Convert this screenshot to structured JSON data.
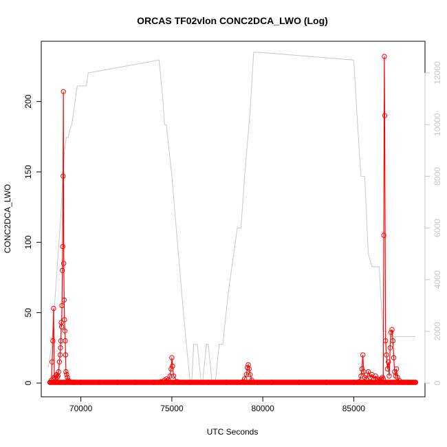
{
  "chart_data": {
    "type": "line",
    "title": "ORCAS TF02vlon CONC2DCA_LWO (Log)",
    "xlabel": "UTC Seconds",
    "ylabel": "CONC2DCA_LWO",
    "xlim": [
      68200,
      88500
    ],
    "ylim": [
      0,
      235
    ],
    "y2lim": [
      0,
      12800
    ],
    "x_ticks": [
      "70000",
      "75000",
      "80000",
      "85000"
    ],
    "x_tick_values": [
      70000,
      75000,
      80000,
      85000
    ],
    "y_ticks": [
      "0",
      "50",
      "100",
      "150",
      "200"
    ],
    "y_tick_values": [
      0,
      50,
      100,
      150,
      200
    ],
    "y2_ticks": [
      "0",
      "2000",
      "4000",
      "6000",
      "8000",
      "10000",
      "12000"
    ],
    "y2_tick_values": [
      0,
      2000,
      4000,
      6000,
      8000,
      10000,
      12000
    ],
    "colors": {
      "series": "#ff0000",
      "secondary": "#c8c8c8"
    },
    "grid": false,
    "series": [
      {
        "axis": "left",
        "style": "line+open-circles",
        "x": [
          68300,
          68380,
          68420,
          68460,
          68500,
          68540,
          68580,
          68620,
          68660,
          68700,
          68740,
          68780,
          68820,
          68860,
          68880,
          68900,
          68920,
          68940,
          68960,
          68980,
          69000,
          69020,
          69040,
          69060,
          69080,
          69100,
          69120,
          69140,
          69160,
          69180,
          69220,
          69260,
          69300,
          69400,
          69600,
          70000,
          71000,
          72000,
          73000,
          74000,
          74400,
          74600,
          74700,
          74800,
          74900,
          74960,
          75000,
          75040,
          75100,
          75300,
          76000,
          77000,
          78000,
          78600,
          78900,
          79000,
          79100,
          79150,
          79200,
          79250,
          79300,
          79400,
          79700,
          80500,
          82000,
          83500,
          85000,
          85300,
          85400,
          85450,
          85500,
          85550,
          85600,
          85700,
          85800,
          85900,
          86000,
          86100,
          86200,
          86300,
          86400,
          86500,
          86580,
          86620,
          86650,
          86680,
          86700,
          86750,
          86800,
          86850,
          86900,
          86950,
          87000,
          87050,
          87100,
          87150,
          87200,
          87250,
          87300,
          87350,
          87400,
          87500,
          87700,
          88000,
          88400
        ],
        "y": [
          0.5,
          2,
          15,
          30,
          53,
          4,
          3,
          5,
          6,
          4,
          5,
          8,
          15,
          20,
          25,
          30,
          43,
          40,
          55,
          80,
          97,
          147,
          207,
          85,
          59,
          45,
          37,
          30,
          20,
          8,
          6,
          4,
          2,
          1,
          0.5,
          0.5,
          0.5,
          0.5,
          0.5,
          0.5,
          1,
          2,
          3,
          2,
          5,
          10,
          18,
          12,
          5,
          1,
          0.5,
          0.5,
          0.5,
          0.5,
          1,
          3,
          6,
          11,
          13,
          10,
          6,
          2,
          0.5,
          0.5,
          0.5,
          0.5,
          0.5,
          1,
          5,
          10,
          20,
          8,
          4,
          3,
          8,
          4,
          6,
          3,
          5,
          3,
          2,
          3,
          4,
          3,
          105,
          232,
          190,
          30,
          20,
          10,
          15,
          5,
          25,
          36,
          38,
          30,
          18,
          8,
          5,
          10,
          4,
          2,
          0.5,
          0.5,
          0.5
        ]
      },
      {
        "axis": "right",
        "style": "line",
        "x": [
          68200,
          68400,
          68600,
          68800,
          68900,
          69000,
          69100,
          69200,
          69300,
          69400,
          69500,
          69600,
          69700,
          69800,
          70000,
          70300,
          70400,
          74300,
          74500,
          74600,
          74700,
          75000,
          75600,
          75800,
          76000,
          76100,
          76200,
          76400,
          76600,
          76700,
          76900,
          77000,
          77200,
          77400,
          77600,
          77800,
          78100,
          78600,
          78800,
          79000,
          79300,
          79500,
          79800,
          85000,
          85300,
          85400,
          85600,
          85800,
          86000,
          86400,
          86600,
          86700,
          86800,
          87000,
          87500,
          88400
        ],
        "y": [
          600,
          1500,
          3500,
          5500,
          6500,
          8000,
          9000,
          9500,
          9500,
          9800,
          10000,
          10500,
          11000,
          11500,
          11500,
          11500,
          12000,
          12500,
          11000,
          10000,
          10000,
          8000,
          3000,
          1500,
          100,
          100,
          1500,
          1500,
          100,
          100,
          1500,
          1500,
          100,
          100,
          1500,
          1500,
          3500,
          6000,
          6000,
          8000,
          10500,
          12800,
          12800,
          12500,
          9000,
          8000,
          8000,
          5000,
          4500,
          4500,
          2000,
          2000,
          2000,
          1800,
          1800,
          1800
        ]
      }
    ]
  }
}
